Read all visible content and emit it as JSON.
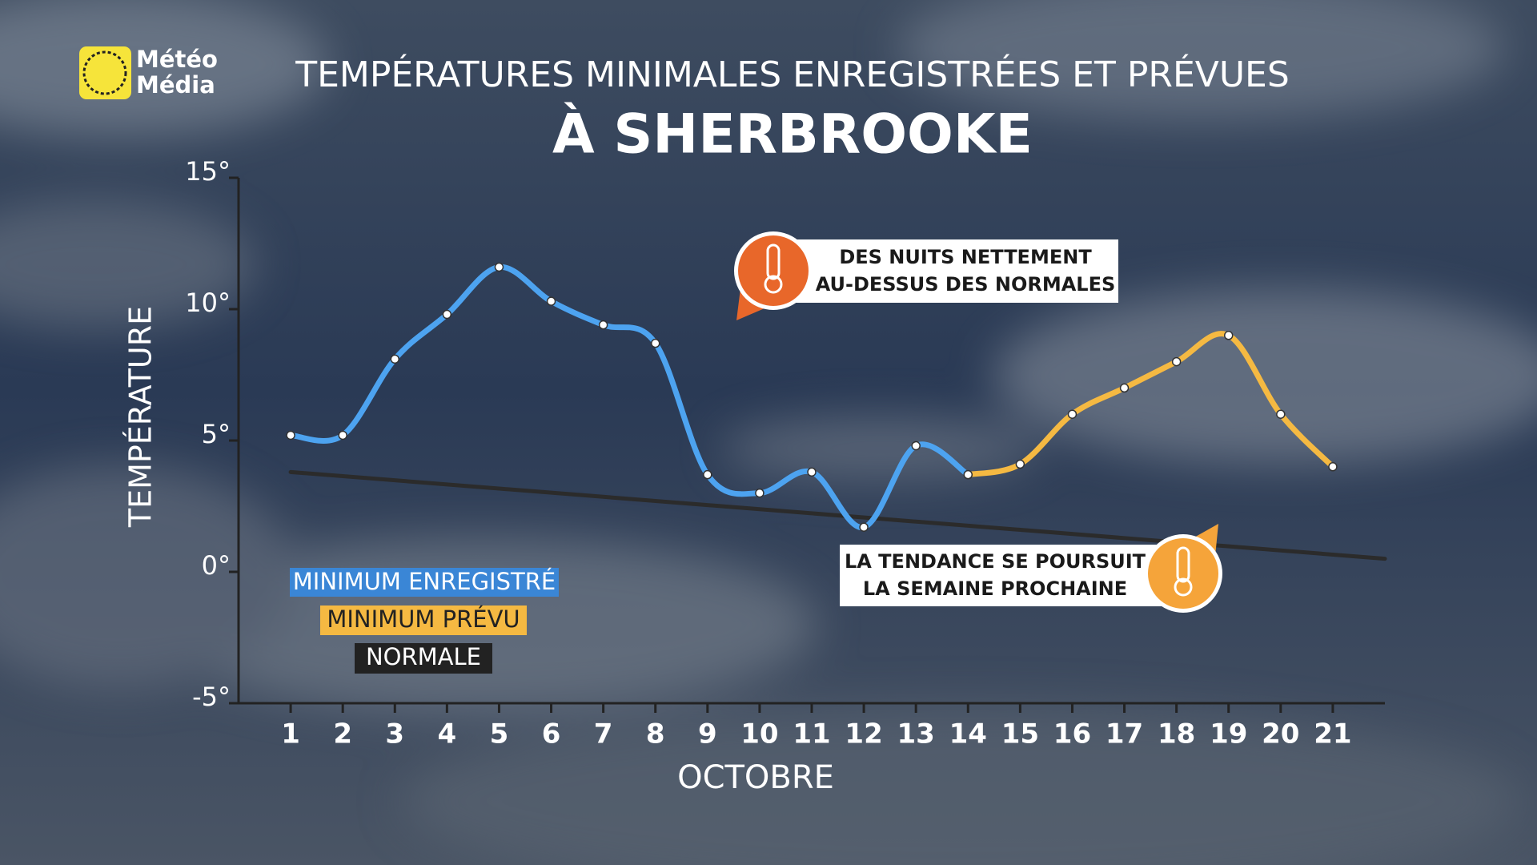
{
  "brand": {
    "lines": [
      "Météo",
      "Média"
    ]
  },
  "chart_data": {
    "type": "line",
    "title": "TEMPÉRATURES MINIMALES ENREGISTRÉES ET PRÉVUES",
    "subtitle": "À SHERBROOKE",
    "y_label": "TEMPÉRATURE",
    "x_label": "OCTOBRE",
    "xlim": [
      0,
      22
    ],
    "xticks": [
      1,
      2,
      3,
      4,
      5,
      6,
      7,
      8,
      9,
      10,
      11,
      12,
      13,
      14,
      15,
      16,
      17,
      18,
      19,
      20,
      21
    ],
    "ylim": [
      -5,
      15
    ],
    "yticks": [
      {
        "value": -5,
        "label": "-5°"
      },
      {
        "value": 0,
        "label": "0°"
      },
      {
        "value": 5,
        "label": "5°"
      },
      {
        "value": 10,
        "label": "10°"
      },
      {
        "value": 15,
        "label": "15°"
      }
    ],
    "series": [
      {
        "name": "MINIMUM ENREGISTRÉ",
        "color": "#4da3f0",
        "smooth": true,
        "markers": true,
        "x": [
          1,
          2,
          3,
          4,
          5,
          6,
          7,
          8,
          9,
          10,
          11,
          12,
          13,
          14
        ],
        "values": [
          5.2,
          5.2,
          8.1,
          9.8,
          11.6,
          10.3,
          9.4,
          8.7,
          3.7,
          3.0,
          3.8,
          1.7,
          4.8,
          3.7
        ]
      },
      {
        "name": "MINIMUM PRÉVU",
        "color": "#f5b942",
        "smooth": true,
        "markers": true,
        "x": [
          14,
          15,
          16,
          17,
          18,
          19,
          20,
          21
        ],
        "values": [
          3.7,
          4.1,
          6.0,
          7.0,
          8.0,
          9.0,
          6.0,
          4.0
        ]
      },
      {
        "name": "NORMALE",
        "color": "#2b2b2b",
        "smooth": false,
        "markers": false,
        "x": [
          1,
          22
        ],
        "values": [
          3.8,
          0.5
        ]
      }
    ],
    "annotations": [
      {
        "lines": [
          "DES NUITS NETTEMENT",
          "AU-DESSUS DES NORMALES"
        ]
      },
      {
        "lines": [
          "LA TENDANCE SE POURSUIT",
          "LA SEMAINE PROCHAINE"
        ]
      }
    ]
  }
}
